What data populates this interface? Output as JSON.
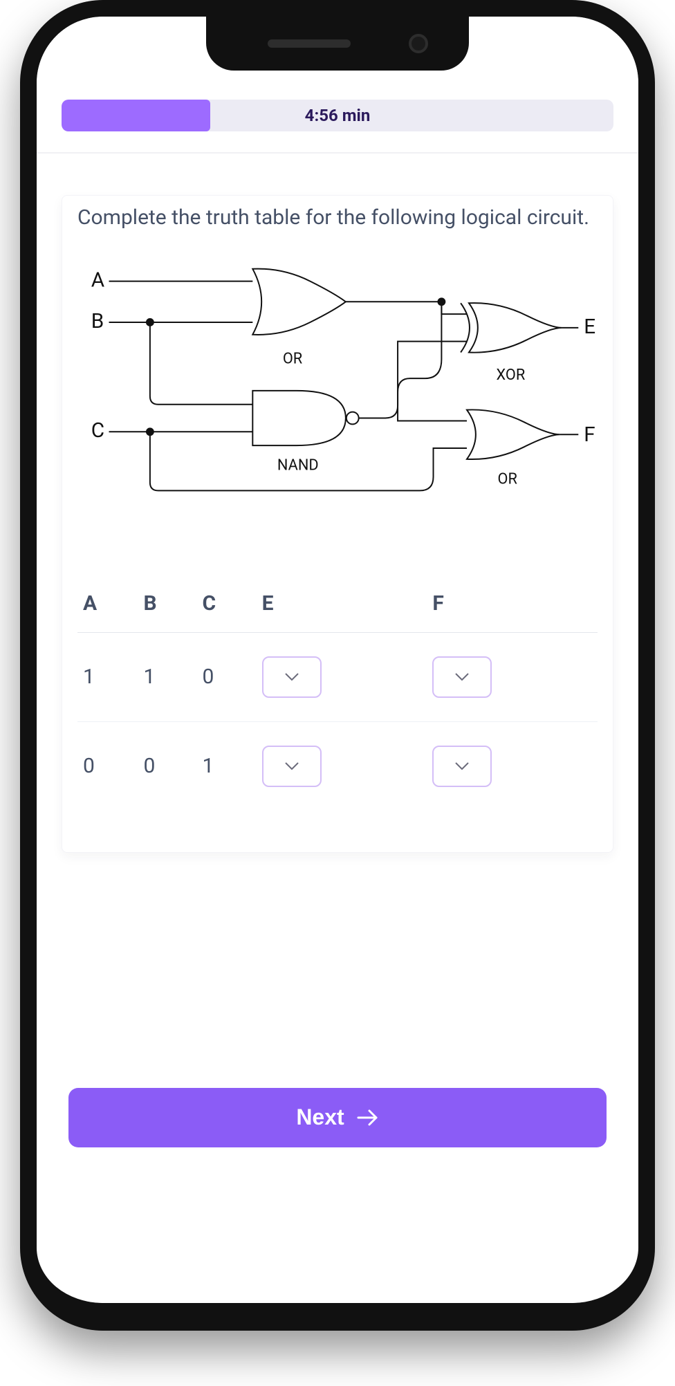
{
  "timer": {
    "label": "4:56 min",
    "progress_pct": 27
  },
  "colors": {
    "accent": "#9d6bff",
    "accent_button": "#8b5cf6",
    "progress_bg": "#ecebf4",
    "dropdown_border": "#d4bef7",
    "text_primary": "#455066",
    "timer_text": "#2b1a5c",
    "device_frame": "#111111"
  },
  "question": {
    "prompt": "Complete the truth table for the following logical circuit."
  },
  "circuit": {
    "type": "logic-diagram",
    "inputs": [
      "A",
      "B",
      "C"
    ],
    "outputs": [
      "E",
      "F"
    ],
    "gates": [
      {
        "id": "g1",
        "kind": "OR",
        "label": "OR",
        "inputs": [
          "A",
          "B"
        ],
        "output": "w1"
      },
      {
        "id": "g2",
        "kind": "NAND",
        "label": "NAND",
        "inputs": [
          "B",
          "C"
        ],
        "output": "w2"
      },
      {
        "id": "g3",
        "kind": "XOR",
        "label": "XOR",
        "inputs": [
          "w1",
          "w2"
        ],
        "output": "E"
      },
      {
        "id": "g4",
        "kind": "OR",
        "label": "OR",
        "inputs": [
          "w1",
          "C"
        ],
        "output": "F"
      }
    ],
    "stroke": "#111111",
    "stroke_width": 2,
    "label_fontsize": 22,
    "io_label_fontsize": 30
  },
  "truth_table": {
    "columns": [
      "A",
      "B",
      "C",
      "E",
      "F"
    ],
    "rows": [
      {
        "A": "1",
        "B": "1",
        "C": "0",
        "E": null,
        "F": null
      },
      {
        "A": "0",
        "B": "0",
        "C": "1",
        "E": null,
        "F": null
      }
    ]
  },
  "footer": {
    "next_label": "Next"
  }
}
